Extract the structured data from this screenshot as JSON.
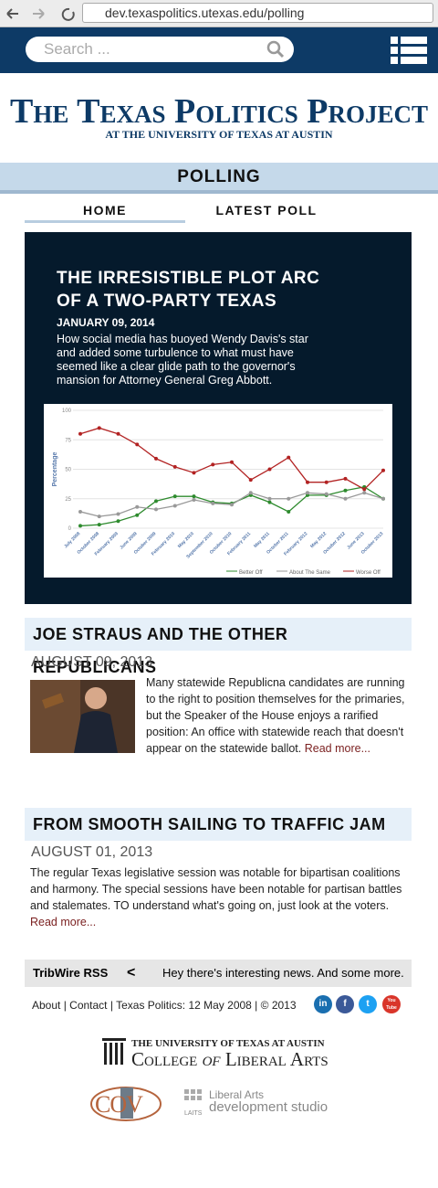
{
  "browser": {
    "url": "dev.texaspolitics.utexas.edu/polling"
  },
  "header": {
    "search_placeholder": "Search ...",
    "title": "The Texas Politics Project",
    "subtitle": "AT THE UNIVERSITY OF TEXAS AT AUSTIN"
  },
  "section": "POLLING",
  "tabs": [
    "HOME",
    "LATEST POLL"
  ],
  "feature": {
    "title": "THE IRRESISTIBLE PLOT ARC OF A TWO-PARTY TEXAS",
    "date": "JANUARY 09, 2014",
    "summary": "How social media has buoyed Wendy Davis's star and added some turbulence to what must have seemed like a clear glide path to the governor's mansion for Attorney General Greg Abbott.",
    "chart": {
      "type": "line",
      "y_label": "Percentage",
      "categories": [
        "July 2008",
        "October 2008",
        "February 2009",
        "June 2009",
        "October 2009",
        "February 2010",
        "May 2010",
        "September 2010",
        "October 2010",
        "February 2011",
        "May 2011",
        "October 2011",
        "February 2012",
        "May 2012",
        "October 2012",
        "June 2013",
        "October 2013"
      ],
      "ylim": [
        0,
        100
      ],
      "yticks": [
        0,
        25,
        50,
        75,
        100
      ],
      "series": [
        {
          "name": "Better Off",
          "color": "#2e8b2e",
          "values": [
            2,
            3,
            6,
            11,
            23,
            27,
            27,
            22,
            21,
            28,
            22,
            14,
            28,
            28,
            32,
            35,
            25
          ]
        },
        {
          "name": "About The Same",
          "color": "#999999",
          "values": [
            14,
            10,
            12,
            18,
            16,
            19,
            24,
            21,
            20,
            30,
            25,
            25,
            30,
            29,
            25,
            30,
            25
          ]
        },
        {
          "name": "Worse Off",
          "color": "#b22222",
          "values": [
            80,
            85,
            80,
            71,
            59,
            52,
            47,
            54,
            56,
            41,
            50,
            60,
            39,
            39,
            42,
            33,
            49
          ]
        }
      ]
    }
  },
  "articles": [
    {
      "title": "JOE STRAUS AND THE OTHER REPUBLICANS",
      "date": "AUGUST 09, 2013",
      "text": "Many statewide Republicna candidates are running to the right to position themselves for the primaries, but the Speaker of the House enjoys a rarified position: An office with statewide reach that doesn't appear on the statewide ballot.",
      "link": "Read more..."
    },
    {
      "title": "FROM SMOOTH SAILING TO TRAFFIC JAM",
      "date": "AUGUST 01, 2013",
      "text": "The regular Texas legislative session was notable for bipartisan coalitions and harmony.  The special sessions have been notable for partisan battles and stalemates.  TO understand what's going on, just look at the voters.",
      "link": "Read more..."
    }
  ],
  "tribwire": {
    "label": "TribWire RSS",
    "arrow": "<",
    "text": "Hey there's interesting news. And some more."
  },
  "footer": {
    "links": [
      "About",
      "Contact",
      "Texas Politics: 12 May 2008",
      "© 2013"
    ],
    "social": [
      "in",
      "f",
      "t",
      "You Tube"
    ]
  },
  "logos": {
    "ut": "THE UNIVERSITY OF TEXAS AT AUSTIN",
    "college": "College",
    "of": "of",
    "arts": "Liberal Arts",
    "cov": "COV",
    "laits_top": "Liberal Arts",
    "laits_bottom": "development studio",
    "laits_abbr": "LAITS"
  }
}
